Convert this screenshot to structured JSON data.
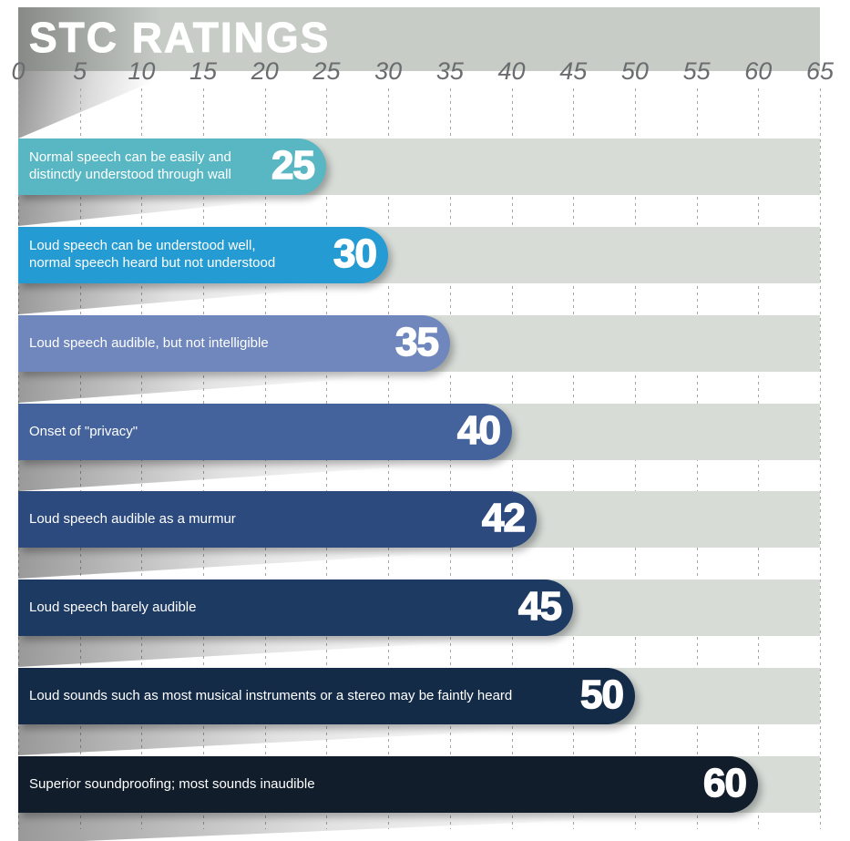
{
  "title_banner": {
    "title": "STC RATINGS"
  },
  "chart_data": {
    "type": "bar",
    "orientation": "horizontal",
    "title": "STC RATINGS",
    "xlim": [
      0,
      65
    ],
    "x_ticks": [
      0,
      5,
      10,
      15,
      20,
      25,
      30,
      35,
      40,
      45,
      50,
      55,
      60,
      65
    ],
    "grid": "dashed-vertical",
    "legend": "none",
    "categories": [
      "Normal speech can be easily and distinctly understood through wall",
      "Loud speech can be understood well, normal speech heard but not understood",
      "Loud speech audible, but not intelligible",
      "Onset of \"privacy\"",
      "Loud speech audible as a murmur",
      "Loud speech barely audible",
      "Loud sounds such as most musical instruments or a stereo may be faintly heard",
      "Superior soundproofing; most sounds inaudible"
    ],
    "values": [
      25,
      30,
      35,
      40,
      42,
      45,
      50,
      60
    ],
    "rows": [
      {
        "value": "25",
        "numeric": 25,
        "label": "Normal speech can be easily and distinctly understood through wall",
        "color": "#58b7c3"
      },
      {
        "value": "30",
        "numeric": 30,
        "label": "Loud speech can be understood well, normal speech heard but not understood",
        "color": "#259bd4"
      },
      {
        "value": "35",
        "numeric": 35,
        "label": "Loud speech audible, but not intelligible",
        "color": "#6f87bd"
      },
      {
        "value": "40",
        "numeric": 40,
        "label": "Onset of \"privacy\"",
        "color": "#44639c"
      },
      {
        "value": "42",
        "numeric": 42,
        "label": "Loud speech audible as a murmur",
        "color": "#2c4a7e"
      },
      {
        "value": "45",
        "numeric": 45,
        "label": "Loud speech barely audible",
        "color": "#1d3a63"
      },
      {
        "value": "50",
        "numeric": 50,
        "label": "Loud sounds such as most musical instruments or a stereo may be faintly heard",
        "color": "#142b48"
      },
      {
        "value": "60",
        "numeric": 60,
        "label": "Superior soundproofing; most sounds inaudible",
        "color": "#121d2b"
      }
    ],
    "colors": {
      "banner": "#c7ccc7",
      "track": "#d7dcd7",
      "gridline": "#a2a7a4",
      "tick_label": "#6b6c6f",
      "bar_text": "#ffffff"
    }
  }
}
